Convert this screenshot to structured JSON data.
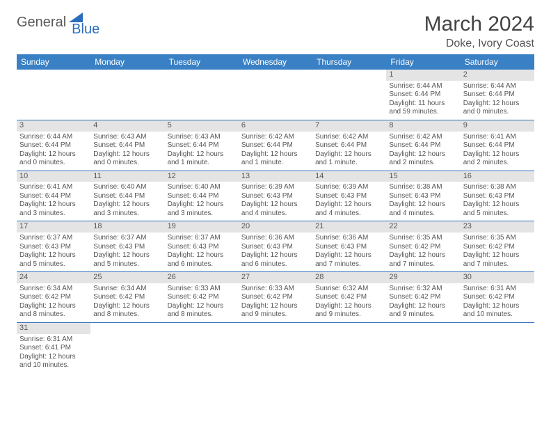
{
  "brand": {
    "name1": "General",
    "name2": "Blue"
  },
  "title": "March 2024",
  "location": "Doke, Ivory Coast",
  "colors": {
    "header_bg": "#3a80c4",
    "header_text": "#ffffff",
    "rule": "#2a6ebb",
    "daynum_bg": "#e4e4e4",
    "body_text": "#555555",
    "logo_gray": "#5a5a5a",
    "logo_blue": "#2a6ebb"
  },
  "weekdays": [
    "Sunday",
    "Monday",
    "Tuesday",
    "Wednesday",
    "Thursday",
    "Friday",
    "Saturday"
  ],
  "weeks": [
    [
      null,
      null,
      null,
      null,
      null,
      {
        "n": "1",
        "sr": "Sunrise: 6:44 AM",
        "ss": "Sunset: 6:44 PM",
        "d1": "Daylight: 11 hours",
        "d2": "and 59 minutes."
      },
      {
        "n": "2",
        "sr": "Sunrise: 6:44 AM",
        "ss": "Sunset: 6:44 PM",
        "d1": "Daylight: 12 hours",
        "d2": "and 0 minutes."
      }
    ],
    [
      {
        "n": "3",
        "sr": "Sunrise: 6:44 AM",
        "ss": "Sunset: 6:44 PM",
        "d1": "Daylight: 12 hours",
        "d2": "and 0 minutes."
      },
      {
        "n": "4",
        "sr": "Sunrise: 6:43 AM",
        "ss": "Sunset: 6:44 PM",
        "d1": "Daylight: 12 hours",
        "d2": "and 0 minutes."
      },
      {
        "n": "5",
        "sr": "Sunrise: 6:43 AM",
        "ss": "Sunset: 6:44 PM",
        "d1": "Daylight: 12 hours",
        "d2": "and 1 minute."
      },
      {
        "n": "6",
        "sr": "Sunrise: 6:42 AM",
        "ss": "Sunset: 6:44 PM",
        "d1": "Daylight: 12 hours",
        "d2": "and 1 minute."
      },
      {
        "n": "7",
        "sr": "Sunrise: 6:42 AM",
        "ss": "Sunset: 6:44 PM",
        "d1": "Daylight: 12 hours",
        "d2": "and 1 minute."
      },
      {
        "n": "8",
        "sr": "Sunrise: 6:42 AM",
        "ss": "Sunset: 6:44 PM",
        "d1": "Daylight: 12 hours",
        "d2": "and 2 minutes."
      },
      {
        "n": "9",
        "sr": "Sunrise: 6:41 AM",
        "ss": "Sunset: 6:44 PM",
        "d1": "Daylight: 12 hours",
        "d2": "and 2 minutes."
      }
    ],
    [
      {
        "n": "10",
        "sr": "Sunrise: 6:41 AM",
        "ss": "Sunset: 6:44 PM",
        "d1": "Daylight: 12 hours",
        "d2": "and 3 minutes."
      },
      {
        "n": "11",
        "sr": "Sunrise: 6:40 AM",
        "ss": "Sunset: 6:44 PM",
        "d1": "Daylight: 12 hours",
        "d2": "and 3 minutes."
      },
      {
        "n": "12",
        "sr": "Sunrise: 6:40 AM",
        "ss": "Sunset: 6:44 PM",
        "d1": "Daylight: 12 hours",
        "d2": "and 3 minutes."
      },
      {
        "n": "13",
        "sr": "Sunrise: 6:39 AM",
        "ss": "Sunset: 6:43 PM",
        "d1": "Daylight: 12 hours",
        "d2": "and 4 minutes."
      },
      {
        "n": "14",
        "sr": "Sunrise: 6:39 AM",
        "ss": "Sunset: 6:43 PM",
        "d1": "Daylight: 12 hours",
        "d2": "and 4 minutes."
      },
      {
        "n": "15",
        "sr": "Sunrise: 6:38 AM",
        "ss": "Sunset: 6:43 PM",
        "d1": "Daylight: 12 hours",
        "d2": "and 4 minutes."
      },
      {
        "n": "16",
        "sr": "Sunrise: 6:38 AM",
        "ss": "Sunset: 6:43 PM",
        "d1": "Daylight: 12 hours",
        "d2": "and 5 minutes."
      }
    ],
    [
      {
        "n": "17",
        "sr": "Sunrise: 6:37 AM",
        "ss": "Sunset: 6:43 PM",
        "d1": "Daylight: 12 hours",
        "d2": "and 5 minutes."
      },
      {
        "n": "18",
        "sr": "Sunrise: 6:37 AM",
        "ss": "Sunset: 6:43 PM",
        "d1": "Daylight: 12 hours",
        "d2": "and 5 minutes."
      },
      {
        "n": "19",
        "sr": "Sunrise: 6:37 AM",
        "ss": "Sunset: 6:43 PM",
        "d1": "Daylight: 12 hours",
        "d2": "and 6 minutes."
      },
      {
        "n": "20",
        "sr": "Sunrise: 6:36 AM",
        "ss": "Sunset: 6:43 PM",
        "d1": "Daylight: 12 hours",
        "d2": "and 6 minutes."
      },
      {
        "n": "21",
        "sr": "Sunrise: 6:36 AM",
        "ss": "Sunset: 6:43 PM",
        "d1": "Daylight: 12 hours",
        "d2": "and 7 minutes."
      },
      {
        "n": "22",
        "sr": "Sunrise: 6:35 AM",
        "ss": "Sunset: 6:42 PM",
        "d1": "Daylight: 12 hours",
        "d2": "and 7 minutes."
      },
      {
        "n": "23",
        "sr": "Sunrise: 6:35 AM",
        "ss": "Sunset: 6:42 PM",
        "d1": "Daylight: 12 hours",
        "d2": "and 7 minutes."
      }
    ],
    [
      {
        "n": "24",
        "sr": "Sunrise: 6:34 AM",
        "ss": "Sunset: 6:42 PM",
        "d1": "Daylight: 12 hours",
        "d2": "and 8 minutes."
      },
      {
        "n": "25",
        "sr": "Sunrise: 6:34 AM",
        "ss": "Sunset: 6:42 PM",
        "d1": "Daylight: 12 hours",
        "d2": "and 8 minutes."
      },
      {
        "n": "26",
        "sr": "Sunrise: 6:33 AM",
        "ss": "Sunset: 6:42 PM",
        "d1": "Daylight: 12 hours",
        "d2": "and 8 minutes."
      },
      {
        "n": "27",
        "sr": "Sunrise: 6:33 AM",
        "ss": "Sunset: 6:42 PM",
        "d1": "Daylight: 12 hours",
        "d2": "and 9 minutes."
      },
      {
        "n": "28",
        "sr": "Sunrise: 6:32 AM",
        "ss": "Sunset: 6:42 PM",
        "d1": "Daylight: 12 hours",
        "d2": "and 9 minutes."
      },
      {
        "n": "29",
        "sr": "Sunrise: 6:32 AM",
        "ss": "Sunset: 6:42 PM",
        "d1": "Daylight: 12 hours",
        "d2": "and 9 minutes."
      },
      {
        "n": "30",
        "sr": "Sunrise: 6:31 AM",
        "ss": "Sunset: 6:42 PM",
        "d1": "Daylight: 12 hours",
        "d2": "and 10 minutes."
      }
    ],
    [
      {
        "n": "31",
        "sr": "Sunrise: 6:31 AM",
        "ss": "Sunset: 6:41 PM",
        "d1": "Daylight: 12 hours",
        "d2": "and 10 minutes."
      },
      null,
      null,
      null,
      null,
      null,
      null
    ]
  ]
}
